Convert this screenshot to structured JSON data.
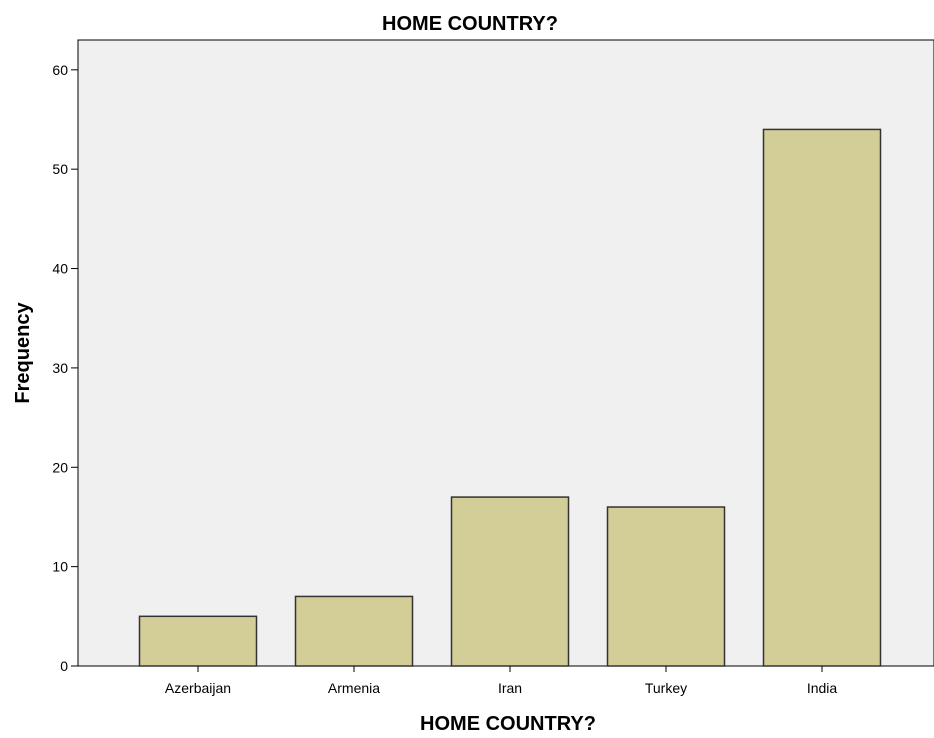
{
  "chart_data": {
    "type": "bar",
    "title": "HOME COUNTRY?",
    "xlabel": "HOME COUNTRY?",
    "ylabel": "Frequency",
    "categories": [
      "Azerbaijan",
      "Armenia",
      "Iran",
      "Turkey",
      "India"
    ],
    "values": [
      5,
      7,
      17,
      16,
      54
    ],
    "ylim": [
      0,
      63
    ],
    "yticks": [
      0,
      10,
      20,
      30,
      40,
      50,
      60
    ],
    "ytick_labels": [
      "0",
      "10",
      "20",
      "30",
      "40",
      "50",
      "60"
    ],
    "grid": false,
    "legend": "none",
    "colors": {
      "bar_fill": "#d3ce97",
      "bar_stroke": "#333333",
      "plot_background": "#f0f0f0",
      "axis": "#000000"
    }
  }
}
